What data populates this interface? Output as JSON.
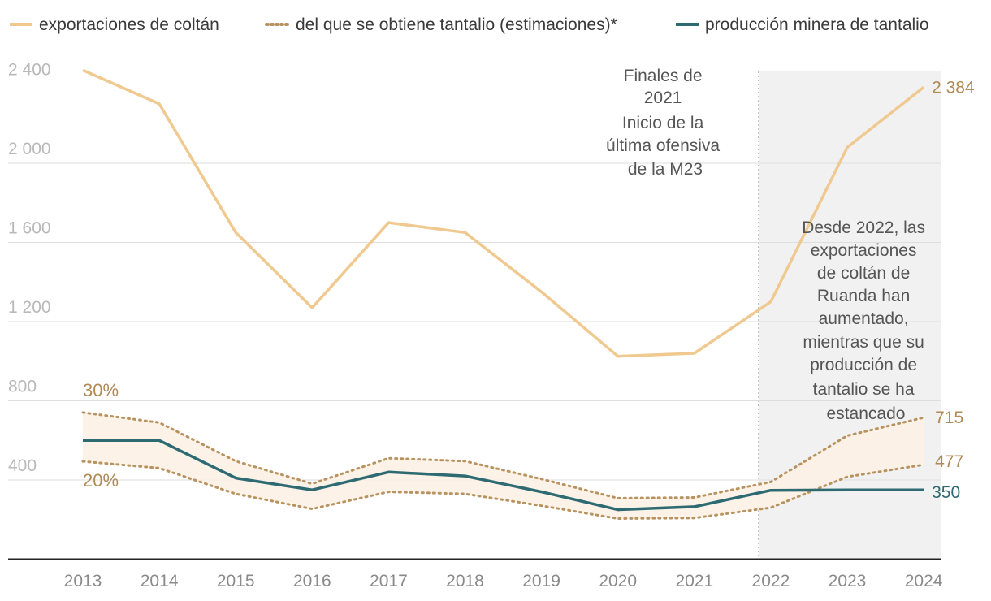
{
  "chart_data": {
    "type": "line",
    "categories": [
      "2013",
      "2014",
      "2015",
      "2016",
      "2017",
      "2018",
      "2019",
      "2020",
      "2021",
      "2022",
      "2023",
      "2024"
    ],
    "ylim": [
      0,
      2500
    ],
    "yticks": [
      400,
      800,
      1200,
      1600,
      2000,
      2400
    ],
    "ytick_labels": [
      "400",
      "800",
      "1 200",
      "1 600",
      "2 000",
      "2 400"
    ],
    "grid": true,
    "legend_position": "top",
    "series": [
      {
        "name": "exportaciones de coltán",
        "color": "#efc98f",
        "style": "solid",
        "values": [
          2470,
          2300,
          1650,
          1270,
          1700,
          1650,
          1350,
          1025,
          1040,
          1300,
          2080,
          2384
        ]
      },
      {
        "name": "del que se obtiene tantalio (estimaciones)*",
        "color": "#b9935f",
        "style": "dotted",
        "band_upper": [
          741,
          690,
          495,
          381,
          510,
          495,
          405,
          308,
          312,
          390,
          624,
          715
        ],
        "band_lower": [
          494,
          460,
          330,
          254,
          340,
          330,
          270,
          205,
          208,
          260,
          416,
          477
        ],
        "band_fill": "#fcf1e4"
      },
      {
        "name": "producción minera de tantalio",
        "color": "#2e6a72",
        "style": "solid",
        "values": [
          600,
          600,
          410,
          350,
          440,
          420,
          340,
          250,
          265,
          348,
          350,
          350
        ]
      }
    ],
    "end_labels": [
      {
        "text": "2 384",
        "series": 0,
        "color": "#b08a55"
      },
      {
        "text": "715",
        "series": 1,
        "color": "#b08a55"
      },
      {
        "text": "477",
        "series": 1,
        "color": "#b08a55"
      },
      {
        "text": "350",
        "series": 2,
        "color": "#2e6a72"
      }
    ],
    "band_labels": {
      "upper": "30%",
      "lower": "20%",
      "color": "#b08a55"
    },
    "highlight_start": "2022",
    "annotations": {
      "left": [
        "Finales de",
        "2021",
        "Inicio de la",
        "última ofensiva",
        "de la M23"
      ],
      "right": [
        "Desde 2022, las",
        "exportaciones",
        "de coltán de",
        "Ruanda han",
        "aumentado,",
        "mientras que su",
        "producción de",
        "tantalio se ha",
        "estancado"
      ]
    }
  }
}
